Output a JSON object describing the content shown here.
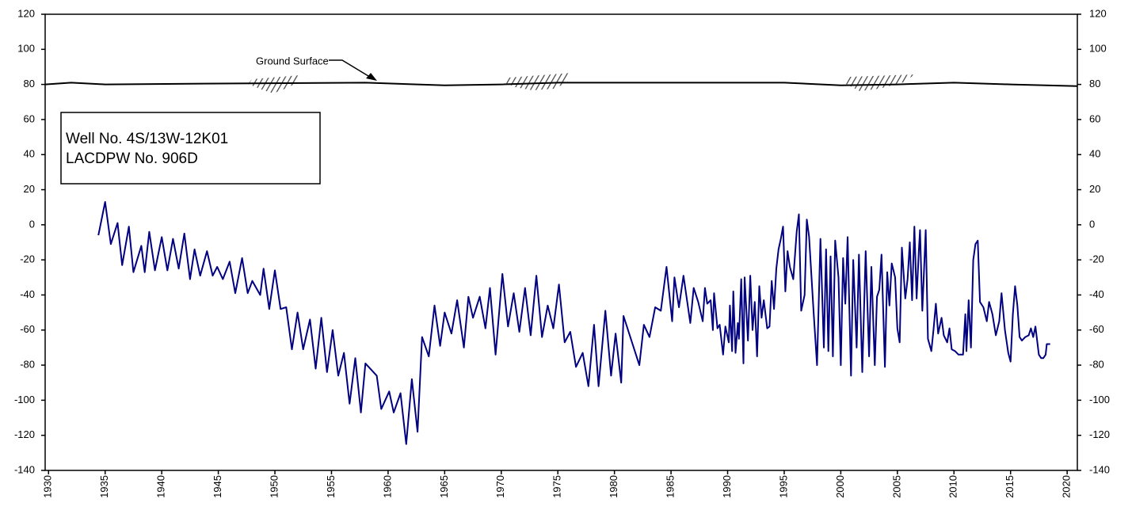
{
  "chart_data": {
    "type": "line",
    "annotations": [
      "Well No. 4S/13W-12K01",
      "LACDPW No. 906D"
    ],
    "xlim": [
      1929.7,
      2020.9
    ],
    "xticks": [
      1930,
      1935,
      1940,
      1945,
      1950,
      1955,
      1960,
      1965,
      1970,
      1975,
      1980,
      1985,
      1990,
      1995,
      2000,
      2005,
      2010,
      2015,
      2020
    ],
    "ylim": [
      -140,
      120
    ],
    "yticks": [
      -140,
      -120,
      -100,
      -80,
      -60,
      -40,
      -20,
      0,
      20,
      40,
      60,
      80,
      100,
      120
    ],
    "y2lim": [
      -140,
      120
    ],
    "y2ticks": [
      -140,
      -120,
      -100,
      -80,
      -60,
      -40,
      -20,
      0,
      20,
      40,
      60,
      80,
      100,
      120
    ],
    "series": [
      {
        "name": "Ground Surface",
        "color": "#000000",
        "x": [
          1929.7,
          1932,
          1935,
          1945,
          1958,
          1965,
          1970,
          1975,
          1990,
          1995,
          2000,
          2005,
          2010,
          2015,
          2020.9
        ],
        "values": [
          80,
          81,
          80,
          80.5,
          81,
          79.5,
          80,
          81,
          81,
          81,
          79.5,
          80,
          81,
          80,
          79
        ]
      },
      {
        "color": "#000080",
        "x": [
          1934.4,
          1935.0,
          1935.5,
          1936.1,
          1936.5,
          1937.1,
          1937.5,
          1938.2,
          1938.5,
          1938.9,
          1939.4,
          1940.0,
          1940.5,
          1941.0,
          1941.5,
          1942.0,
          1942.5,
          1942.9,
          1943.4,
          1944.0,
          1944.5,
          1944.9,
          1945.4,
          1946.0,
          1946.5,
          1947.1,
          1947.6,
          1948.0,
          1948.7,
          1949.0,
          1949.5,
          1950.0,
          1950.5,
          1951.0,
          1951.5,
          1952.0,
          1952.5,
          1953.1,
          1953.6,
          1954.1,
          1954.6,
          1955.1,
          1955.6,
          1956.1,
          1956.6,
          1957.1,
          1957.6,
          1958.0,
          1959.0,
          1959.4,
          1960.1,
          1960.5,
          1961.1,
          1961.6,
          1962.1,
          1962.6,
          1963.0,
          1963.6,
          1964.1,
          1964.6,
          1965.0,
          1965.6,
          1966.1,
          1966.7,
          1967.1,
          1967.5,
          1968.1,
          1968.6,
          1969.0,
          1969.5,
          1970.1,
          1970.6,
          1971.1,
          1971.6,
          1972.1,
          1972.6,
          1973.1,
          1973.6,
          1974.1,
          1974.6,
          1975.1,
          1975.6,
          1976.1,
          1976.6,
          1977.2,
          1977.7,
          1978.2,
          1978.6,
          1979.2,
          1979.7,
          1980.1,
          1980.6,
          1980.8,
          1982.2,
          1982.6,
          1983.1,
          1983.6,
          1984.1,
          1984.6,
          1985.1,
          1985.3,
          1985.7,
          1986.1,
          1986.7,
          1987.0,
          1987.4,
          1987.8,
          1988.0,
          1988.2,
          1988.5,
          1988.7,
          1988.8,
          1989.1,
          1989.3,
          1989.6,
          1989.8,
          1990.1,
          1990.2,
          1990.4,
          1990.5,
          1990.7,
          1990.9,
          1991.0,
          1991.2,
          1991.4,
          1991.5,
          1991.8,
          1992.0,
          1992.2,
          1992.4,
          1992.6,
          1992.8,
          1993.0,
          1993.2,
          1993.5,
          1993.7,
          1993.9,
          1994.1,
          1994.3,
          1994.5,
          1994.7,
          1994.9,
          1995.1,
          1995.3,
          1995.5,
          1995.8,
          1996.1,
          1996.3,
          1996.5,
          1996.8,
          1997.0,
          1997.2,
          1997.6,
          1997.9,
          1998.2,
          1998.5,
          1998.7,
          1998.9,
          1999.1,
          1999.3,
          1999.5,
          1999.8,
          2000.0,
          2000.2,
          2000.4,
          2000.6,
          2000.9,
          2001.1,
          2001.4,
          2001.6,
          2001.9,
          2002.2,
          2002.5,
          2002.7,
          2003.0,
          2003.2,
          2003.4,
          2003.6,
          2003.9,
          2004.1,
          2004.3,
          2004.5,
          2004.8,
          2005.0,
          2005.2,
          2005.4,
          2005.7,
          2005.9,
          2006.1,
          2006.3,
          2006.5,
          2006.7,
          2006.9,
          2007.0,
          2007.2,
          2007.5,
          2007.7,
          2008.0,
          2008.2,
          2008.4,
          2008.6,
          2008.9,
          2009.1,
          2009.4,
          2009.6,
          2009.8,
          2010.1,
          2010.4,
          2010.8,
          2011.0,
          2011.1,
          2011.3,
          2011.5,
          2011.7,
          2011.9,
          2012.1,
          2012.3,
          2012.6,
          2012.9,
          2013.1,
          2013.4,
          2013.7,
          2014.0,
          2014.2,
          2014.5,
          2014.8,
          2015.0,
          2015.2,
          2015.4,
          2015.6,
          2015.8,
          2016.0,
          2016.3,
          2016.6,
          2016.8,
          2017.0,
          2017.2,
          2017.5,
          2017.7,
          2017.9,
          2018.1,
          2018.2,
          2018.5
        ],
        "values": [
          -6,
          13,
          -11,
          1,
          -23,
          -1,
          -27,
          -12,
          -27,
          -4,
          -26,
          -7,
          -26,
          -8,
          -25,
          -5,
          -31,
          -14,
          -29,
          -15,
          -29,
          -24,
          -31,
          -21,
          -39,
          -19,
          -39,
          -32,
          -40,
          -25,
          -48,
          -26,
          -48,
          -47,
          -71,
          -50,
          -71,
          -54,
          -82,
          -53,
          -84,
          -60,
          -86,
          -73,
          -102,
          -76,
          -107,
          -79,
          -86,
          -105,
          -95,
          -107,
          -96,
          -125,
          -88,
          -118,
          -64,
          -75,
          -46,
          -69,
          -50,
          -62,
          -43,
          -70,
          -41,
          -53,
          -41,
          -59,
          -36,
          -74,
          -28,
          -58,
          -39,
          -61,
          -36,
          -63,
          -29,
          -64,
          -46,
          -59,
          -34,
          -67,
          -61,
          -81,
          -73,
          -92,
          -57,
          -92,
          -49,
          -86,
          -62,
          -90,
          -52,
          -80,
          -57,
          -64,
          -47,
          -49,
          -24,
          -55,
          -30,
          -47,
          -29,
          -56,
          -36,
          -44,
          -55,
          -36,
          -45,
          -43,
          -60,
          -39,
          -59,
          -57,
          -74,
          -58,
          -67,
          -46,
          -72,
          -38,
          -73,
          -56,
          -65,
          -31,
          -79,
          -30,
          -66,
          -29,
          -60,
          -44,
          -75,
          -35,
          -53,
          -43,
          -59,
          -58,
          -32,
          -48,
          -25,
          -14,
          -8,
          -1,
          -38,
          -15,
          -24,
          -31,
          -4,
          6,
          -49,
          -40,
          3,
          -7,
          -50,
          -80,
          -8,
          -70,
          -14,
          -72,
          -18,
          -75,
          -9,
          -30,
          -80,
          -19,
          -45,
          -7,
          -86,
          -20,
          -70,
          -17,
          -84,
          -15,
          -75,
          -24,
          -80,
          -41,
          -37,
          -17,
          -81,
          -27,
          -46,
          -22,
          -30,
          -59,
          -67,
          -13,
          -42,
          -31,
          -10,
          -43,
          -1,
          -42,
          -14,
          -3,
          -49,
          -3,
          -65,
          -72,
          -59,
          -45,
          -62,
          -53,
          -63,
          -67,
          -59,
          -71,
          -72,
          -74,
          -74,
          -51,
          -72,
          -43,
          -70,
          -20,
          -11,
          -9,
          -44,
          -47,
          -55,
          -44,
          -51,
          -63,
          -55,
          -39,
          -60,
          -73,
          -78,
          -51,
          -35,
          -46,
          -64,
          -66,
          -64,
          -63,
          -59,
          -64,
          -58,
          -74,
          -76,
          -76,
          -74,
          -68,
          -68
        ]
      }
    ]
  }
}
